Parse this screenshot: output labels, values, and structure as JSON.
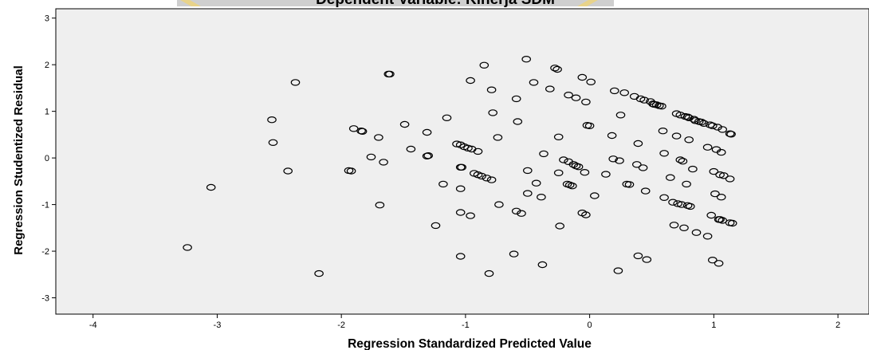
{
  "chart_data": {
    "type": "scatter",
    "title": "Dependent Variable: Kinerja SDM",
    "xlabel": "Regression Standardized Predicted Value",
    "ylabel": "Regression Studentized Residual",
    "xlim": [
      -4.3,
      2.25
    ],
    "ylim": [
      -3.35,
      3.2
    ],
    "x_ticks": [
      -4,
      -3,
      -2,
      -1,
      0,
      1,
      2
    ],
    "y_ticks": [
      -3,
      -2,
      -1,
      0,
      1,
      2,
      3
    ],
    "grid": false,
    "background": "#efefef",
    "marker": "open-circle",
    "marker_color": "#000000",
    "points": [
      [
        -3.24,
        -1.92
      ],
      [
        -3.05,
        -0.63
      ],
      [
        -2.56,
        0.82
      ],
      [
        -2.55,
        0.33
      ],
      [
        -2.43,
        -0.28
      ],
      [
        -2.37,
        1.62
      ],
      [
        -2.18,
        -2.48
      ],
      [
        -1.94,
        -0.27
      ],
      [
        -1.92,
        -0.28
      ],
      [
        -1.9,
        0.63
      ],
      [
        -1.84,
        0.58
      ],
      [
        -1.83,
        0.57
      ],
      [
        -1.76,
        0.02
      ],
      [
        -1.7,
        0.44
      ],
      [
        -1.69,
        -1.01
      ],
      [
        -1.66,
        -0.09
      ],
      [
        -1.62,
        1.8
      ],
      [
        -1.61,
        1.8
      ],
      [
        -1.49,
        0.72
      ],
      [
        -1.44,
        0.19
      ],
      [
        -1.31,
        0.04
      ],
      [
        -1.3,
        0.05
      ],
      [
        -1.31,
        0.55
      ],
      [
        -1.24,
        -1.45
      ],
      [
        -1.18,
        -0.56
      ],
      [
        -1.15,
        0.86
      ],
      [
        -1.07,
        0.3
      ],
      [
        -1.04,
        0.28
      ],
      [
        -1.01,
        0.24
      ],
      [
        -0.98,
        0.21
      ],
      [
        -0.95,
        0.19
      ],
      [
        -0.9,
        0.14
      ],
      [
        -1.04,
        -0.2
      ],
      [
        -1.03,
        -0.2
      ],
      [
        -1.04,
        -0.66
      ],
      [
        -1.04,
        -1.17
      ],
      [
        -0.96,
        -1.24
      ],
      [
        -0.93,
        -0.33
      ],
      [
        -0.9,
        -0.36
      ],
      [
        -0.87,
        -0.39
      ],
      [
        -0.83,
        -0.43
      ],
      [
        -0.79,
        -0.47
      ],
      [
        -1.04,
        -2.11
      ],
      [
        -0.81,
        -2.48
      ],
      [
        -0.85,
        1.99
      ],
      [
        -0.96,
        1.66
      ],
      [
        -0.79,
        1.46
      ],
      [
        -0.78,
        0.97
      ],
      [
        -0.74,
        0.44
      ],
      [
        -0.73,
        -1.0
      ],
      [
        -0.61,
        -2.06
      ],
      [
        -0.59,
        1.27
      ],
      [
        -0.59,
        -1.14
      ],
      [
        -0.58,
        0.78
      ],
      [
        -0.55,
        -1.19
      ],
      [
        -0.51,
        2.12
      ],
      [
        -0.5,
        -0.27
      ],
      [
        -0.5,
        -0.76
      ],
      [
        -0.45,
        1.62
      ],
      [
        -0.43,
        -0.54
      ],
      [
        -0.39,
        -0.84
      ],
      [
        -0.38,
        -2.29
      ],
      [
        -0.37,
        0.09
      ],
      [
        -0.32,
        1.48
      ],
      [
        -0.28,
        1.93
      ],
      [
        -0.26,
        1.9
      ],
      [
        -0.25,
        -0.32
      ],
      [
        -0.25,
        0.45
      ],
      [
        -0.24,
        -1.46
      ],
      [
        -0.21,
        -0.04
      ],
      [
        -0.18,
        -0.56
      ],
      [
        -0.16,
        -0.58
      ],
      [
        -0.17,
        -0.08
      ],
      [
        -0.14,
        -0.6
      ],
      [
        -0.17,
        1.35
      ],
      [
        -0.13,
        -0.14
      ],
      [
        -0.11,
        -0.17
      ],
      [
        -0.11,
        1.29
      ],
      [
        -0.09,
        -0.19
      ],
      [
        -0.06,
        -1.18
      ],
      [
        -0.06,
        1.73
      ],
      [
        -0.04,
        -0.31
      ],
      [
        -0.03,
        -1.22
      ],
      [
        -0.03,
        1.2
      ],
      [
        -0.02,
        0.7
      ],
      [
        0.0,
        0.69
      ],
      [
        0.01,
        1.63
      ],
      [
        0.04,
        -0.81
      ],
      [
        0.13,
        -0.35
      ],
      [
        0.2,
        1.44
      ],
      [
        0.18,
        0.48
      ],
      [
        0.19,
        -0.02
      ],
      [
        0.23,
        -2.42
      ],
      [
        0.24,
        -0.06
      ],
      [
        0.25,
        0.92
      ],
      [
        0.28,
        1.4
      ],
      [
        0.3,
        -0.56
      ],
      [
        0.32,
        -0.57
      ],
      [
        0.36,
        1.32
      ],
      [
        0.38,
        -0.14
      ],
      [
        0.39,
        -2.1
      ],
      [
        0.39,
        0.31
      ],
      [
        0.41,
        1.27
      ],
      [
        0.44,
        1.24
      ],
      [
        0.43,
        -0.21
      ],
      [
        0.45,
        -0.71
      ],
      [
        0.46,
        -2.18
      ],
      [
        0.49,
        1.21
      ],
      [
        0.51,
        1.16
      ],
      [
        0.52,
        1.15
      ],
      [
        0.54,
        1.14
      ],
      [
        0.56,
        1.12
      ],
      [
        0.58,
        1.11
      ],
      [
        0.59,
        0.58
      ],
      [
        0.6,
        -0.85
      ],
      [
        0.6,
        0.1
      ],
      [
        0.65,
        -0.42
      ],
      [
        0.67,
        -0.95
      ],
      [
        0.68,
        -1.44
      ],
      [
        0.7,
        0.95
      ],
      [
        0.7,
        0.47
      ],
      [
        0.71,
        -0.98
      ],
      [
        0.73,
        0.92
      ],
      [
        0.73,
        -0.04
      ],
      [
        0.74,
        -1.0
      ],
      [
        0.75,
        -0.07
      ],
      [
        0.76,
        -1.5
      ],
      [
        0.77,
        0.89
      ],
      [
        0.78,
        -0.56
      ],
      [
        0.79,
        0.88
      ],
      [
        0.8,
        0.86
      ],
      [
        0.79,
        -1.02
      ],
      [
        0.8,
        0.39
      ],
      [
        0.81,
        -1.04
      ],
      [
        0.83,
        -0.24
      ],
      [
        0.84,
        0.83
      ],
      [
        0.85,
        0.8
      ],
      [
        0.86,
        -1.6
      ],
      [
        0.88,
        0.78
      ],
      [
        0.9,
        0.77
      ],
      [
        0.92,
        0.74
      ],
      [
        0.95,
        -1.68
      ],
      [
        0.95,
        0.23
      ],
      [
        0.97,
        0.71
      ],
      [
        0.98,
        -1.23
      ],
      [
        0.99,
        -2.19
      ],
      [
        0.99,
        0.69
      ],
      [
        1.0,
        -0.29
      ],
      [
        1.01,
        -0.77
      ],
      [
        1.02,
        0.18
      ],
      [
        1.03,
        0.66
      ],
      [
        1.04,
        -1.32
      ],
      [
        1.04,
        -2.26
      ],
      [
        1.05,
        -0.36
      ],
      [
        1.05,
        -1.32
      ],
      [
        1.06,
        -0.84
      ],
      [
        1.06,
        0.12
      ],
      [
        1.07,
        0.61
      ],
      [
        1.07,
        -1.34
      ],
      [
        1.08,
        -0.38
      ],
      [
        1.13,
        -0.45
      ],
      [
        1.13,
        -1.39
      ],
      [
        1.13,
        0.52
      ],
      [
        1.14,
        0.51
      ],
      [
        1.15,
        -1.4
      ]
    ]
  }
}
